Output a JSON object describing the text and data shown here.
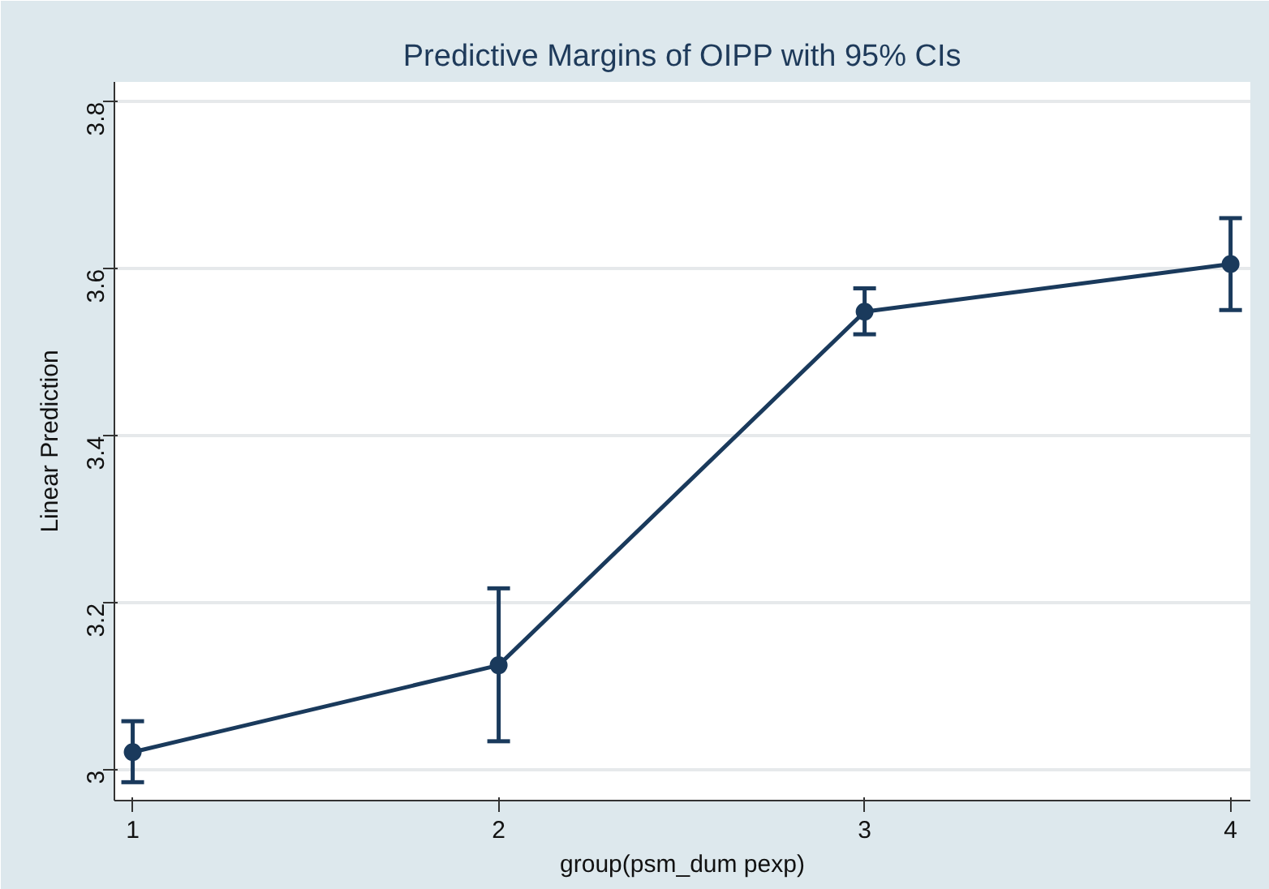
{
  "chart_data": {
    "type": "line",
    "title": "Predictive Margins of OIPP with 95% CIs",
    "xlabel": "group(psm_dum pexp)",
    "ylabel": "Linear Prediction",
    "x": [
      1,
      2,
      3,
      4
    ],
    "series": [
      {
        "color": "#1a3a5c",
        "values": [
          3.022,
          3.126,
          3.549,
          3.606
        ],
        "errors": [
          [
            2.986,
            3.059
          ],
          [
            3.035,
            3.218
          ],
          [
            3.522,
            3.577
          ],
          [
            3.551,
            3.661
          ]
        ]
      }
    ],
    "xlim": [
      0.95,
      4.054
    ],
    "xticks": [
      1,
      2,
      3,
      4
    ],
    "ylim": [
      2.964,
      3.824
    ],
    "yticks": [
      {
        "value": 3,
        "label": "3"
      },
      3.2,
      3.4,
      3.6,
      3.8
    ],
    "grid": "y",
    "marker": "circle",
    "line_style": "solid"
  }
}
